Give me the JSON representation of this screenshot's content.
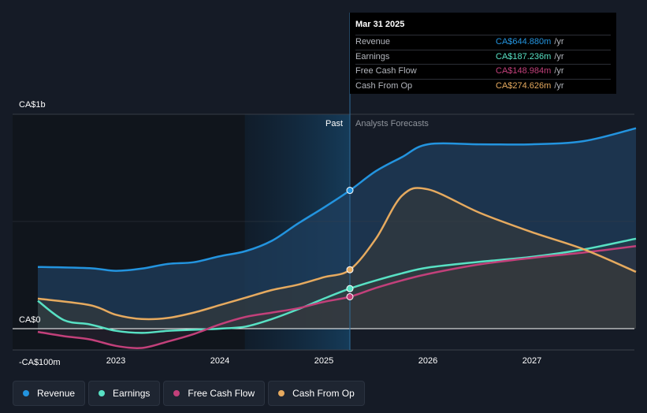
{
  "colors": {
    "background": "#151b26",
    "past_panel": "#10151c",
    "revenue": "#2394df",
    "earnings": "#58e1c4",
    "free_cash_flow": "#c2407a",
    "cash_from_op": "#e6aa5f"
  },
  "tooltip": {
    "date": "Mar 31 2025",
    "unit": "/yr",
    "rows": [
      {
        "label": "Revenue",
        "value": "CA$644.880m",
        "color": "#2394df"
      },
      {
        "label": "Earnings",
        "value": "CA$187.236m",
        "color": "#58e1c4"
      },
      {
        "label": "Free Cash Flow",
        "value": "CA$148.984m",
        "color": "#c2407a"
      },
      {
        "label": "Cash From Op",
        "value": "CA$274.626m",
        "color": "#e6aa5f"
      }
    ]
  },
  "legend": [
    {
      "label": "Revenue",
      "color": "#2394df",
      "icon": "revenue-dot-icon"
    },
    {
      "label": "Earnings",
      "color": "#58e1c4",
      "icon": "earnings-dot-icon"
    },
    {
      "label": "Free Cash Flow",
      "color": "#c2407a",
      "icon": "free-cash-flow-dot-icon"
    },
    {
      "label": "Cash From Op",
      "color": "#e6aa5f",
      "icon": "cash-from-op-dot-icon"
    }
  ],
  "chart_data": {
    "type": "line",
    "title": "",
    "xlabel": "",
    "ylabel": "",
    "y_ticks": [
      {
        "value": 1000,
        "label": "CA$1b"
      },
      {
        "value": 0,
        "label": "CA$0"
      },
      {
        "value": -100,
        "label": "-CA$100m"
      }
    ],
    "x_ticks": [
      {
        "value": 2023,
        "label": "2023"
      },
      {
        "value": 2024,
        "label": "2024"
      },
      {
        "value": 2025,
        "label": "2025"
      },
      {
        "value": 2026,
        "label": "2026"
      },
      {
        "value": 2027,
        "label": "2027"
      }
    ],
    "xlim": [
      2022.25,
      2028.0
    ],
    "ylim": [
      -100,
      1000
    ],
    "grid": true,
    "divider_x": 2025.25,
    "highlight_start_x": 2024.24,
    "past_label": "Past",
    "forecast_label": "Analysts Forecasts",
    "series": [
      {
        "name": "Revenue",
        "key": "revenue",
        "color": "#2394df",
        "marker_x": 2025.25,
        "points": [
          [
            2022.25,
            288
          ],
          [
            2022.75,
            282
          ],
          [
            2023.0,
            270
          ],
          [
            2023.25,
            280
          ],
          [
            2023.5,
            302
          ],
          [
            2023.75,
            310
          ],
          [
            2024.0,
            338
          ],
          [
            2024.25,
            362
          ],
          [
            2024.5,
            410
          ],
          [
            2024.75,
            490
          ],
          [
            2025.0,
            565
          ],
          [
            2025.25,
            645
          ],
          [
            2025.5,
            735
          ],
          [
            2025.75,
            800
          ],
          [
            2026.0,
            860
          ],
          [
            2026.5,
            860
          ],
          [
            2027.0,
            860
          ],
          [
            2027.5,
            875
          ],
          [
            2028.0,
            935
          ]
        ]
      },
      {
        "name": "Earnings",
        "key": "earnings",
        "color": "#58e1c4",
        "marker_x": 2025.25,
        "points": [
          [
            2022.25,
            130
          ],
          [
            2022.5,
            40
          ],
          [
            2022.75,
            20
          ],
          [
            2023.0,
            -10
          ],
          [
            2023.25,
            -20
          ],
          [
            2023.5,
            -10
          ],
          [
            2023.75,
            -5
          ],
          [
            2024.0,
            0
          ],
          [
            2024.25,
            10
          ],
          [
            2024.5,
            45
          ],
          [
            2024.75,
            90
          ],
          [
            2025.0,
            140
          ],
          [
            2025.25,
            187
          ],
          [
            2025.5,
            225
          ],
          [
            2025.75,
            258
          ],
          [
            2026.0,
            285
          ],
          [
            2026.5,
            312
          ],
          [
            2027.0,
            335
          ],
          [
            2027.5,
            370
          ],
          [
            2028.0,
            420
          ]
        ]
      },
      {
        "name": "Free Cash Flow",
        "key": "free_cash_flow",
        "color": "#c2407a",
        "marker_x": 2025.25,
        "points": [
          [
            2022.25,
            -15
          ],
          [
            2022.5,
            -35
          ],
          [
            2022.75,
            -50
          ],
          [
            2023.0,
            -80
          ],
          [
            2023.25,
            -90
          ],
          [
            2023.5,
            -60
          ],
          [
            2023.75,
            -25
          ],
          [
            2024.0,
            20
          ],
          [
            2024.25,
            55
          ],
          [
            2024.5,
            75
          ],
          [
            2024.75,
            95
          ],
          [
            2025.0,
            125
          ],
          [
            2025.25,
            149
          ],
          [
            2025.5,
            190
          ],
          [
            2025.75,
            225
          ],
          [
            2026.0,
            255
          ],
          [
            2026.5,
            300
          ],
          [
            2027.0,
            330
          ],
          [
            2027.5,
            355
          ],
          [
            2028.0,
            385
          ]
        ]
      },
      {
        "name": "Cash From Op",
        "key": "cash_from_op",
        "color": "#e6aa5f",
        "marker_x": 2025.25,
        "points": [
          [
            2022.25,
            140
          ],
          [
            2022.75,
            110
          ],
          [
            2023.0,
            65
          ],
          [
            2023.25,
            45
          ],
          [
            2023.5,
            50
          ],
          [
            2023.75,
            75
          ],
          [
            2024.0,
            110
          ],
          [
            2024.25,
            145
          ],
          [
            2024.5,
            180
          ],
          [
            2024.75,
            205
          ],
          [
            2025.0,
            240
          ],
          [
            2025.25,
            275
          ],
          [
            2025.5,
            420
          ],
          [
            2025.75,
            620
          ],
          [
            2026.0,
            650
          ],
          [
            2026.5,
            540
          ],
          [
            2027.0,
            450
          ],
          [
            2027.5,
            370
          ],
          [
            2028.0,
            265
          ]
        ]
      }
    ]
  }
}
